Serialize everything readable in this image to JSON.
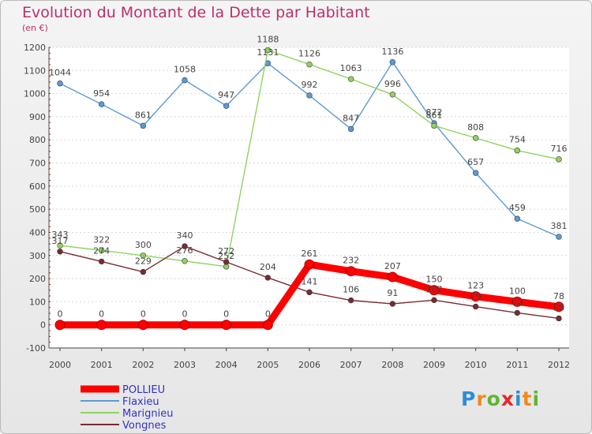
{
  "header": {
    "title": "Evolution du Montant de la Dette par Habitant",
    "subtitle": "(en €)"
  },
  "logo": {
    "text": "Proxiti",
    "colors": [
      "#2b8fd6",
      "#f08a1c",
      "#5fb534",
      "#e8262b",
      "#2b8fd6",
      "#f08a1c",
      "#5fb534"
    ]
  },
  "chart_data": {
    "type": "line",
    "categories": [
      "2000",
      "2001",
      "2002",
      "2003",
      "2004",
      "2005",
      "2006",
      "2007",
      "2008",
      "2009",
      "2010",
      "2011",
      "2012"
    ],
    "ylim": [
      -100,
      1200
    ],
    "yticks": [
      -100,
      0,
      100,
      200,
      300,
      400,
      500,
      600,
      700,
      800,
      900,
      1000,
      1100,
      1200
    ],
    "grid": true,
    "legend_position": "bottom-left",
    "series": [
      {
        "name": "Flaxieu",
        "color": "#5b9bd5",
        "values": [
          1044,
          954,
          861,
          1058,
          947,
          1131,
          992,
          847,
          1136,
          872,
          657,
          459,
          381
        ],
        "labels": [
          "1044",
          "954",
          "861",
          "1058",
          "947",
          "1131",
          "992",
          "847",
          "1136",
          "872",
          "657",
          "459",
          "381"
        ]
      },
      {
        "name": "Marignieu",
        "color": "#8fd35f",
        "values": [
          343,
          322,
          300,
          276,
          252,
          1188,
          1126,
          1063,
          996,
          861,
          808,
          754,
          716
        ],
        "labels": [
          "343",
          "322",
          "300",
          "276",
          "252",
          "1188",
          "1126",
          "1063",
          "996",
          "861",
          "808",
          "754",
          "716"
        ]
      },
      {
        "name": "Vongnes",
        "color": "#7b2a2f",
        "values": [
          317,
          274,
          229,
          340,
          272,
          204,
          141,
          106,
          91,
          107,
          79,
          52,
          28
        ],
        "labels": [
          "317",
          "274",
          "229",
          "340",
          "272",
          "204",
          "141",
          "106",
          "91",
          "107",
          "79",
          "52",
          "28"
        ]
      },
      {
        "name": "POLLIEU",
        "color": "#ff0000",
        "values": [
          0,
          0,
          0,
          0,
          0,
          0,
          261,
          232,
          207,
          150,
          123,
          100,
          78
        ],
        "labels": [
          "0",
          "0",
          "0",
          "0",
          "0",
          "0",
          "261",
          "232",
          "207",
          "150",
          "123",
          "100",
          "78"
        ],
        "highlight": true
      }
    ],
    "legend_order": [
      "POLLIEU",
      "Flaxieu",
      "Marignieu",
      "Vongnes"
    ],
    "legend_text_color": "#3232c8"
  }
}
